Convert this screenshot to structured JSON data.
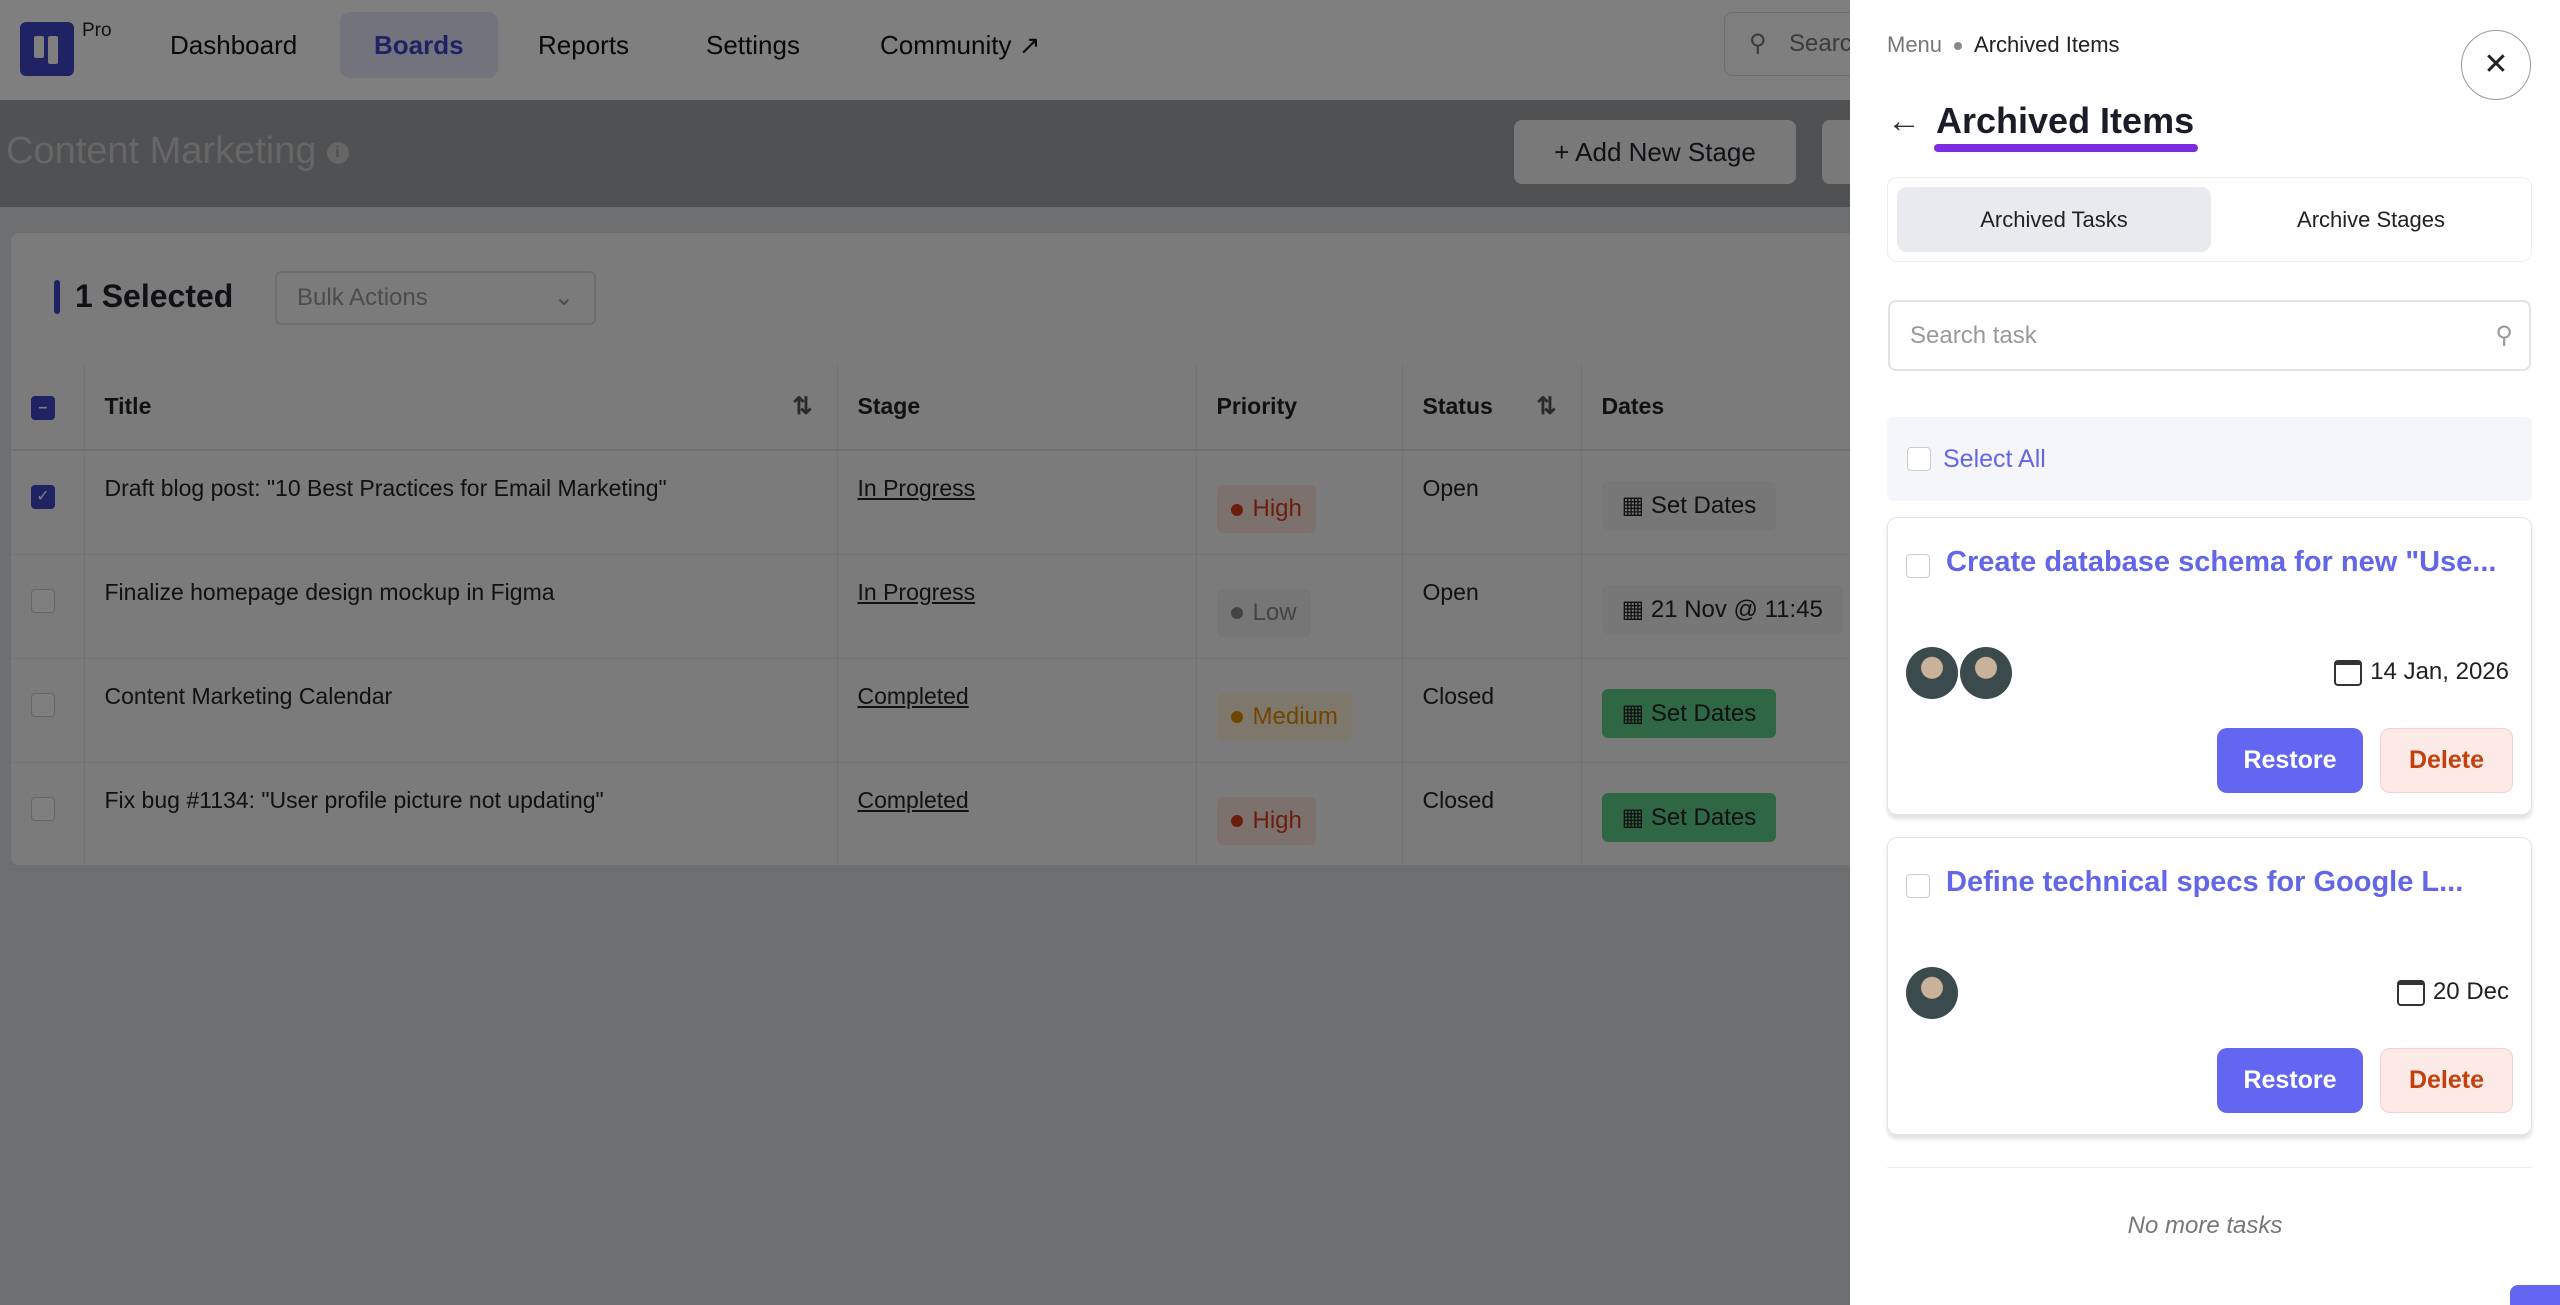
{
  "nav": {
    "logo_badge": "Pro",
    "items": [
      {
        "label": "Dashboard"
      },
      {
        "label": "Boards",
        "active": true
      },
      {
        "label": "Reports"
      },
      {
        "label": "Settings"
      },
      {
        "label": "Community ↗"
      }
    ],
    "search_placeholder": "Search"
  },
  "board": {
    "title": "Content Marketing",
    "add_stage_label": "+ Add New Stage"
  },
  "selection": {
    "count_label": "1 Selected",
    "bulk_actions": "Bulk Actions"
  },
  "table": {
    "columns": [
      "Title",
      "Stage",
      "Priority",
      "Status",
      "Dates"
    ],
    "rows": [
      {
        "checked": true,
        "title": "Draft blog post: \"10 Best Practices for Email Marketing\"",
        "stage": "In Progress",
        "priority": "High",
        "status": "Open",
        "dates": "Set Dates"
      },
      {
        "checked": false,
        "title": "Finalize homepage design mockup in Figma",
        "stage": "In Progress",
        "priority": "Low",
        "status": "Open",
        "dates": "21 Nov @ 11:45"
      },
      {
        "checked": false,
        "title": "Content Marketing Calendar",
        "stage": "Completed",
        "priority": "Medium",
        "status": "Closed",
        "dates": "Set Dates"
      },
      {
        "checked": false,
        "title": "Fix bug #1134: \"User profile picture not updating\"",
        "stage": "Completed",
        "priority": "High",
        "status": "Closed",
        "dates": "Set Dates"
      }
    ]
  },
  "panel": {
    "breadcrumb": [
      "Menu",
      "Archived Items"
    ],
    "title": "Archived Items",
    "tabs": [
      {
        "label": "Archived Tasks",
        "active": true
      },
      {
        "label": "Archive Stages"
      }
    ],
    "search_placeholder": "Search task",
    "select_all": "Select All",
    "cards": [
      {
        "title": "Create database schema for new \"Use...",
        "date": "14 Jan, 2026",
        "avatars": 2,
        "restore": "Restore",
        "delete": "Delete"
      },
      {
        "title": "Define technical specs for Google L...",
        "date": "20 Dec",
        "avatars": 1,
        "restore": "Restore",
        "delete": "Delete"
      }
    ],
    "footer": "No more tasks"
  },
  "colors": {
    "accent": "#6366f1",
    "brand": "#3f46c8",
    "title_underline": "#7b2ce0",
    "high": "#d93a1a",
    "medium": "#e08a00",
    "low": "#888888",
    "delete_text": "#c2410c"
  }
}
